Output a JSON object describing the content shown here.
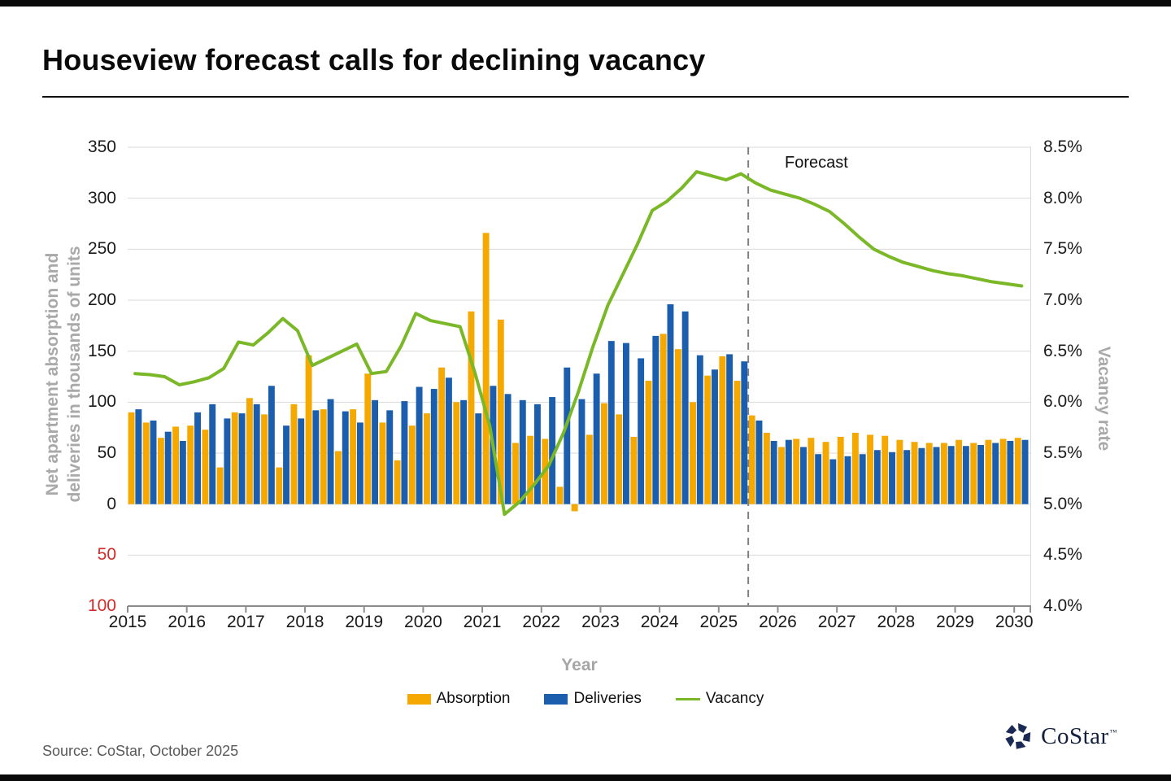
{
  "page": {
    "title": "Houseview forecast calls for declining vacancy"
  },
  "source": {
    "text": "Source: CoStar, October 2025"
  },
  "logo": {
    "text": "CoStar",
    "tm": "™"
  },
  "legend": {
    "absorption": {
      "label": "Absorption"
    },
    "deliveries": {
      "label": "Deliveries"
    },
    "vacancy": {
      "label": "Vacancy"
    }
  },
  "chart_data": {
    "type": "bar",
    "subtype": "grouped bars with secondary-axis line, quarterly",
    "title": "Houseview forecast calls for declining vacancy",
    "xlabel": "Year",
    "ylabel_left": "Net apartment absorption and deliveries in thousands of units",
    "ylabel_left_lines": [
      "Net apartment absorption and",
      "deliveries in thousands of units"
    ],
    "ylabel_right": "Vacancy rate",
    "ylim_left": [
      -100,
      350
    ],
    "ylim_right_pct": [
      4.0,
      8.5
    ],
    "grid": "horizontal",
    "legend_position": "bottom",
    "forecast_label": "Forecast",
    "forecast_divider_after": "2025 Q2",
    "forecast_start_index": 42,
    "years": [
      "2015",
      "2016",
      "2017",
      "2018",
      "2019",
      "2020",
      "2021",
      "2022",
      "2023",
      "2024",
      "2025",
      "2026",
      "2027",
      "2028",
      "2029",
      "2030"
    ],
    "categories": [
      "2015 Q1",
      "2015 Q2",
      "2015 Q3",
      "2015 Q4",
      "2016 Q1",
      "2016 Q2",
      "2016 Q3",
      "2016 Q4",
      "2017 Q1",
      "2017 Q2",
      "2017 Q3",
      "2017 Q4",
      "2018 Q1",
      "2018 Q2",
      "2018 Q3",
      "2018 Q4",
      "2019 Q1",
      "2019 Q2",
      "2019 Q3",
      "2019 Q4",
      "2020 Q1",
      "2020 Q2",
      "2020 Q3",
      "2020 Q4",
      "2021 Q1",
      "2021 Q2",
      "2021 Q3",
      "2021 Q4",
      "2022 Q1",
      "2022 Q2",
      "2022 Q3",
      "2022 Q4",
      "2023 Q1",
      "2023 Q2",
      "2023 Q3",
      "2023 Q4",
      "2024 Q1",
      "2024 Q2",
      "2024 Q3",
      "2024 Q4",
      "2025 Q1",
      "2025 Q2",
      "2025 Q3",
      "2025 Q4",
      "2026 Q1",
      "2026 Q2",
      "2026 Q3",
      "2026 Q4",
      "2027 Q1",
      "2027 Q2",
      "2027 Q3",
      "2027 Q4",
      "2028 Q1",
      "2028 Q2",
      "2028 Q3",
      "2028 Q4",
      "2029 Q1",
      "2029 Q2",
      "2029 Q3",
      "2029 Q4",
      "2030 Q1"
    ],
    "series": [
      {
        "name": "Absorption",
        "type": "bar",
        "axis": "left",
        "color": "#F5A800",
        "values": [
          90,
          80,
          65,
          76,
          77,
          73,
          36,
          90,
          104,
          88,
          36,
          98,
          146,
          93,
          52,
          93,
          128,
          80,
          43,
          77,
          89,
          134,
          100,
          189,
          266,
          181,
          60,
          67,
          64,
          17,
          -7,
          68,
          99,
          88,
          66,
          121,
          167,
          152,
          100,
          126,
          145,
          121,
          87,
          70,
          56,
          64,
          65,
          61,
          66,
          70,
          68,
          67,
          63,
          61,
          60,
          60,
          63,
          60,
          63,
          64,
          65
        ]
      },
      {
        "name": "Deliveries",
        "type": "bar",
        "axis": "left",
        "color": "#1A5EAD",
        "values": [
          93,
          82,
          71,
          62,
          90,
          98,
          84,
          89,
          98,
          116,
          77,
          84,
          92,
          103,
          91,
          80,
          102,
          92,
          101,
          115,
          113,
          124,
          102,
          89,
          116,
          108,
          102,
          98,
          105,
          134,
          103,
          128,
          160,
          158,
          143,
          165,
          196,
          189,
          146,
          132,
          147,
          140,
          82,
          62,
          63,
          56,
          49,
          44,
          47,
          49,
          53,
          51,
          53,
          55,
          56,
          57,
          57,
          58,
          60,
          62,
          63
        ]
      },
      {
        "name": "Vacancy",
        "type": "line",
        "axis": "right",
        "color": "#7AB828",
        "values": [
          6.28,
          6.27,
          6.25,
          6.17,
          6.2,
          6.24,
          6.33,
          6.59,
          6.56,
          6.68,
          6.82,
          6.7,
          6.36,
          6.43,
          6.5,
          6.57,
          6.28,
          6.3,
          6.55,
          6.87,
          6.8,
          6.77,
          6.74,
          6.29,
          5.77,
          4.9,
          5.02,
          5.19,
          5.38,
          5.7,
          6.1,
          6.55,
          6.95,
          7.25,
          7.55,
          7.88,
          7.97,
          8.1,
          8.26,
          8.22,
          8.18,
          8.24,
          8.15,
          8.08,
          8.04,
          8.0,
          7.94,
          7.87,
          7.75,
          7.62,
          7.5,
          7.43,
          7.37,
          7.33,
          7.29,
          7.26,
          7.24,
          7.21,
          7.18,
          7.16,
          7.14
        ]
      }
    ],
    "y_left_ticks": [
      {
        "label": "350",
        "value": 350
      },
      {
        "label": "300",
        "value": 300
      },
      {
        "label": "250",
        "value": 250
      },
      {
        "label": "200",
        "value": 200
      },
      {
        "label": "150",
        "value": 150
      },
      {
        "label": "100",
        "value": 100
      },
      {
        "label": "50",
        "value": 50
      },
      {
        "label": "0",
        "value": 0
      },
      {
        "label": "50",
        "value": -50,
        "negative": true
      },
      {
        "label": "100",
        "value": -100,
        "negative": true
      }
    ],
    "y_right_ticks": [
      {
        "label": "8.5%",
        "value": 8.5
      },
      {
        "label": "8.0%",
        "value": 8.0
      },
      {
        "label": "7.5%",
        "value": 7.5
      },
      {
        "label": "7.0%",
        "value": 7.0
      },
      {
        "label": "6.5%",
        "value": 6.5
      },
      {
        "label": "6.0%",
        "value": 6.0
      },
      {
        "label": "5.5%",
        "value": 5.5
      },
      {
        "label": "5.0%",
        "value": 5.0
      },
      {
        "label": "4.5%",
        "value": 4.5
      },
      {
        "label": "4.0%",
        "value": 4.0
      }
    ],
    "colors": {
      "absorption": "#F5A800",
      "deliveries": "#1A5EAD",
      "vacancy": "#7AB828",
      "gridline": "#D9D9D9",
      "axis_line": "#8C8C8C",
      "negative_tick": "#D42A2A",
      "axis_title_gray": "#A9A9A9",
      "forecast_divider": "#808080"
    }
  }
}
